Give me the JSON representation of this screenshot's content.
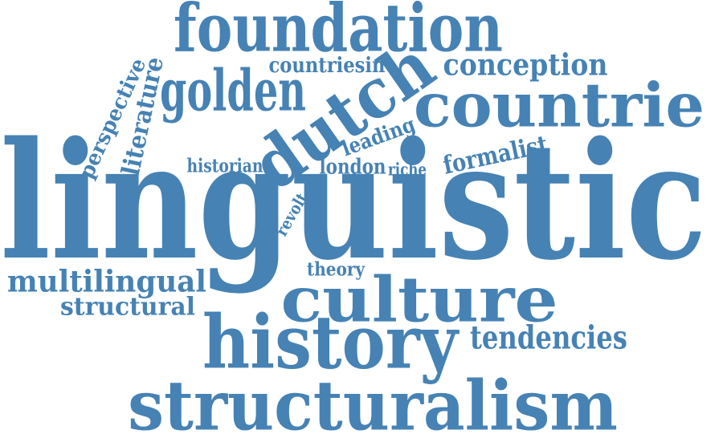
{
  "word_color": "#4682b4",
  "background": "#ffffff",
  "words": [
    {
      "key": "linguistic",
      "text": "linguistic"
    },
    {
      "key": "foundation",
      "text": "foundation"
    },
    {
      "key": "golden",
      "text": "golden"
    },
    {
      "key": "dutch",
      "text": "dutch"
    },
    {
      "key": "countrie",
      "text": "countrie"
    },
    {
      "key": "conception",
      "text": "conception"
    },
    {
      "key": "countriesin",
      "text": "countriesin"
    },
    {
      "key": "perspective",
      "text": "perspective"
    },
    {
      "key": "literature",
      "text": "literature"
    },
    {
      "key": "leading",
      "text": "leading"
    },
    {
      "key": "historian",
      "text": "historian"
    },
    {
      "key": "london",
      "text": "london"
    },
    {
      "key": "riche",
      "text": "riche"
    },
    {
      "key": "formalist",
      "text": "formalist"
    },
    {
      "key": "revolt",
      "text": "revolt"
    },
    {
      "key": "theory",
      "text": "theory"
    },
    {
      "key": "multilingual",
      "text": "multilingual"
    },
    {
      "key": "structural",
      "text": "structural"
    },
    {
      "key": "culture",
      "text": "culture"
    },
    {
      "key": "tendencies",
      "text": "tendencies"
    },
    {
      "key": "history",
      "text": "history"
    },
    {
      "key": "structuralism",
      "text": "structuralism"
    }
  ]
}
